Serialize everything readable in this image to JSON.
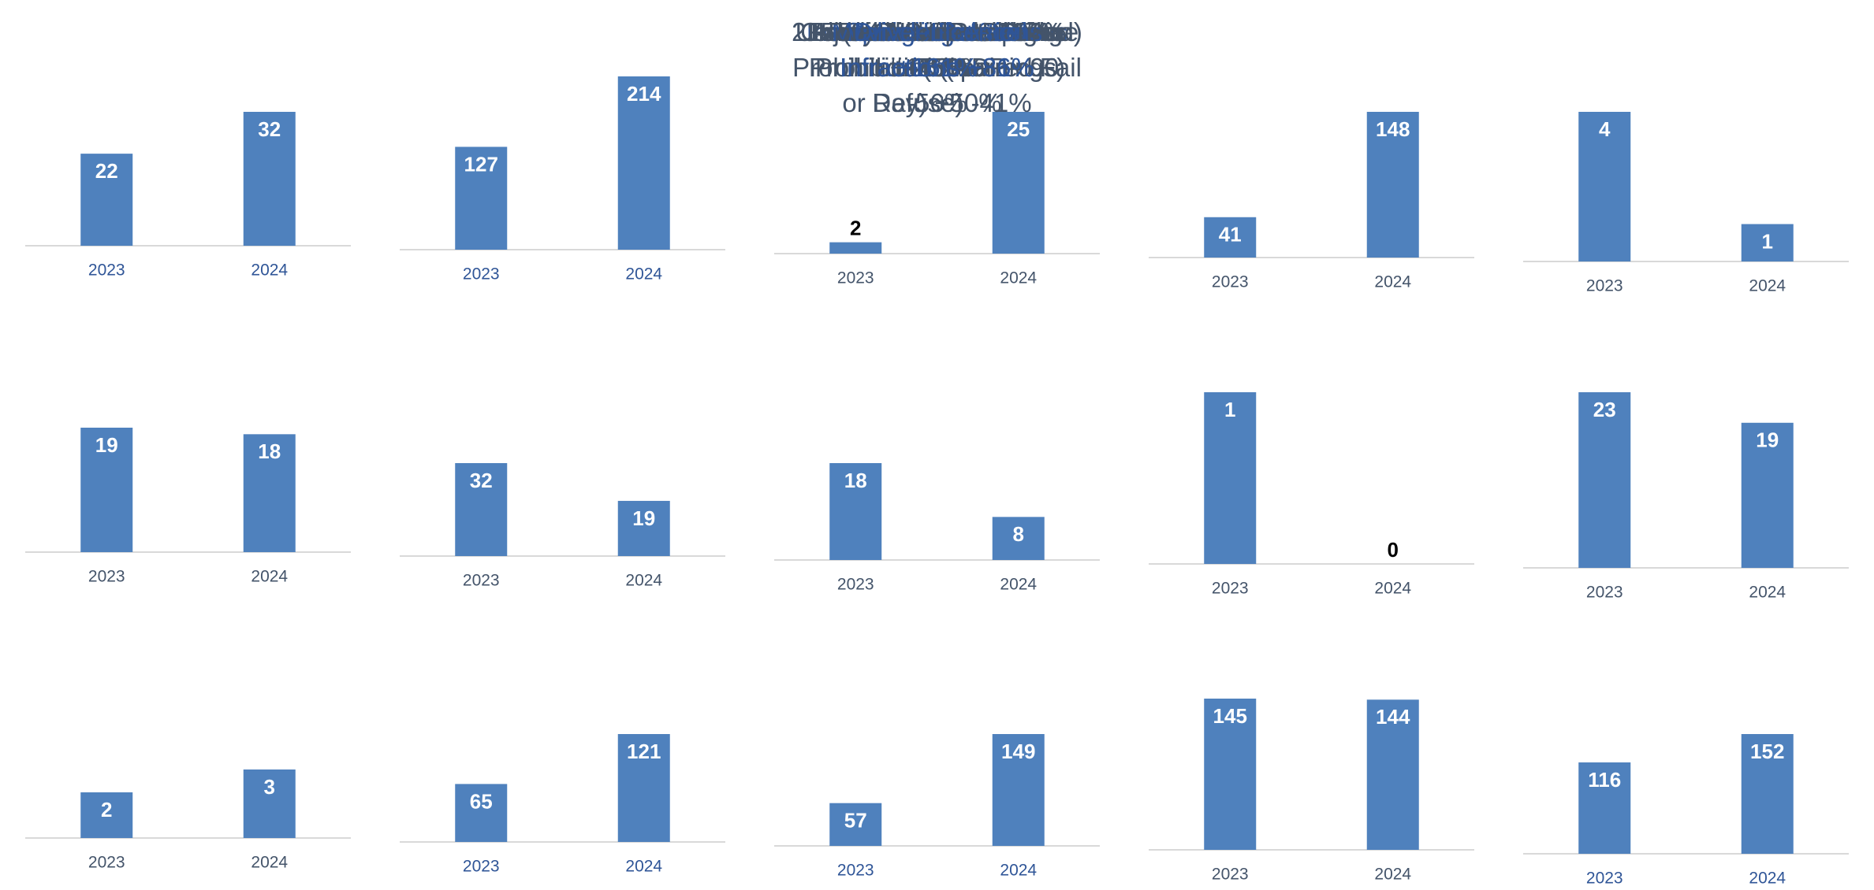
{
  "chart_data": [
    {
      "type": "bar",
      "title": "Intersection Infractions +45%",
      "title_color": "#2f5597",
      "categories": [
        "2023",
        "2024"
      ],
      "values": [
        22,
        32
      ],
      "color": "#4f81bd"
    },
    {
      "type": "bar",
      "title": "Speeding +69%",
      "title_color": "#2f5597",
      "categories": [
        "2023",
        "2024"
      ],
      "values": [
        127,
        214
      ],
      "color": "#4f81bd"
    },
    {
      "type": "bar",
      "title": "Excess Speeding +1150%",
      "title_color": "#44546a",
      "categories": [
        "2023",
        "2024"
      ],
      "values": [
        2,
        25
      ],
      "color": "#4f81bd"
    },
    {
      "type": "bar",
      "title": "Use of Electronic Device +261%",
      "title_color": "#44546a",
      "categories": [
        "2023",
        "2024"
      ],
      "values": [
        41,
        148
      ],
      "color": "#4f81bd"
    },
    {
      "type": "bar",
      "title": "Criminal Code Impaired -75%",
      "title_color": "#44546a",
      "categories": [
        "2023",
        "2024"
      ],
      "values": [
        4,
        1
      ],
      "color": "#4f81bd"
    },
    {
      "type": "bar",
      "title": "215 (24 Hour Prohibition) -5%",
      "title_color": "#44546a",
      "categories": [
        "2023",
        "2024"
      ],
      "values": [
        19,
        18
      ],
      "color": "#4f81bd"
    },
    {
      "type": "bar",
      "title": "Immediate Roadside Prohibition (Impaired Fail or Refuse) -41%",
      "title_color": "#44546a",
      "categories": [
        "2023",
        "2024"
      ],
      "values": [
        32,
        19
      ],
      "color": "#4f81bd"
    },
    {
      "type": "bar",
      "title": "Immediate Roadside Prohibition (Warnings) -56%",
      "title_color": "#44546a",
      "categories": [
        "2023",
        "2024"
      ],
      "values": [
        18,
        8
      ],
      "color": "#4f81bd"
    },
    {
      "type": "bar",
      "title": "Fatal Collisions -100%",
      "title_color": "#44546a",
      "categories": [
        "2023",
        "2024"
      ],
      "values": [
        1,
        0
      ],
      "color": "#4f81bd"
    },
    {
      "type": "bar",
      "title": "Injury Accidents -17%",
      "title_color": "#44546a",
      "categories": [
        "2023",
        "2024"
      ],
      "values": [
        23,
        19
      ],
      "color": "#4f81bd"
    },
    {
      "type": "bar",
      "title": "Administrative Driving Prohibition (ADP - 90 Day) +50%",
      "title_color": "#44546a",
      "categories": [
        "2023",
        "2024"
      ],
      "values": [
        2,
        3
      ],
      "color": "#4f81bd"
    },
    {
      "type": "bar",
      "title": "Vehicle Related Infractions +86%",
      "title_color": "#2f5597",
      "categories": [
        "2023",
        "2024"
      ],
      "values": [
        65,
        121
      ],
      "color": "#4f81bd"
    },
    {
      "type": "bar",
      "title": "Moving Infractions +161%",
      "title_color": "#2f5597",
      "categories": [
        "2023",
        "2024"
      ],
      "values": [
        57,
        149
      ],
      "color": "#4f81bd"
    },
    {
      "type": "bar",
      "title": "Total Accidents -1%",
      "title_color": "#44546a",
      "categories": [
        "2023",
        "2024"
      ],
      "values": [
        145,
        144
      ],
      "color": "#4f81bd"
    },
    {
      "type": "bar",
      "title": "Driver Licence Infractions +31%",
      "title_color": "#2f5597",
      "categories": [
        "2023",
        "2024"
      ],
      "values": [
        116,
        152
      ],
      "color": "#4f81bd"
    }
  ]
}
